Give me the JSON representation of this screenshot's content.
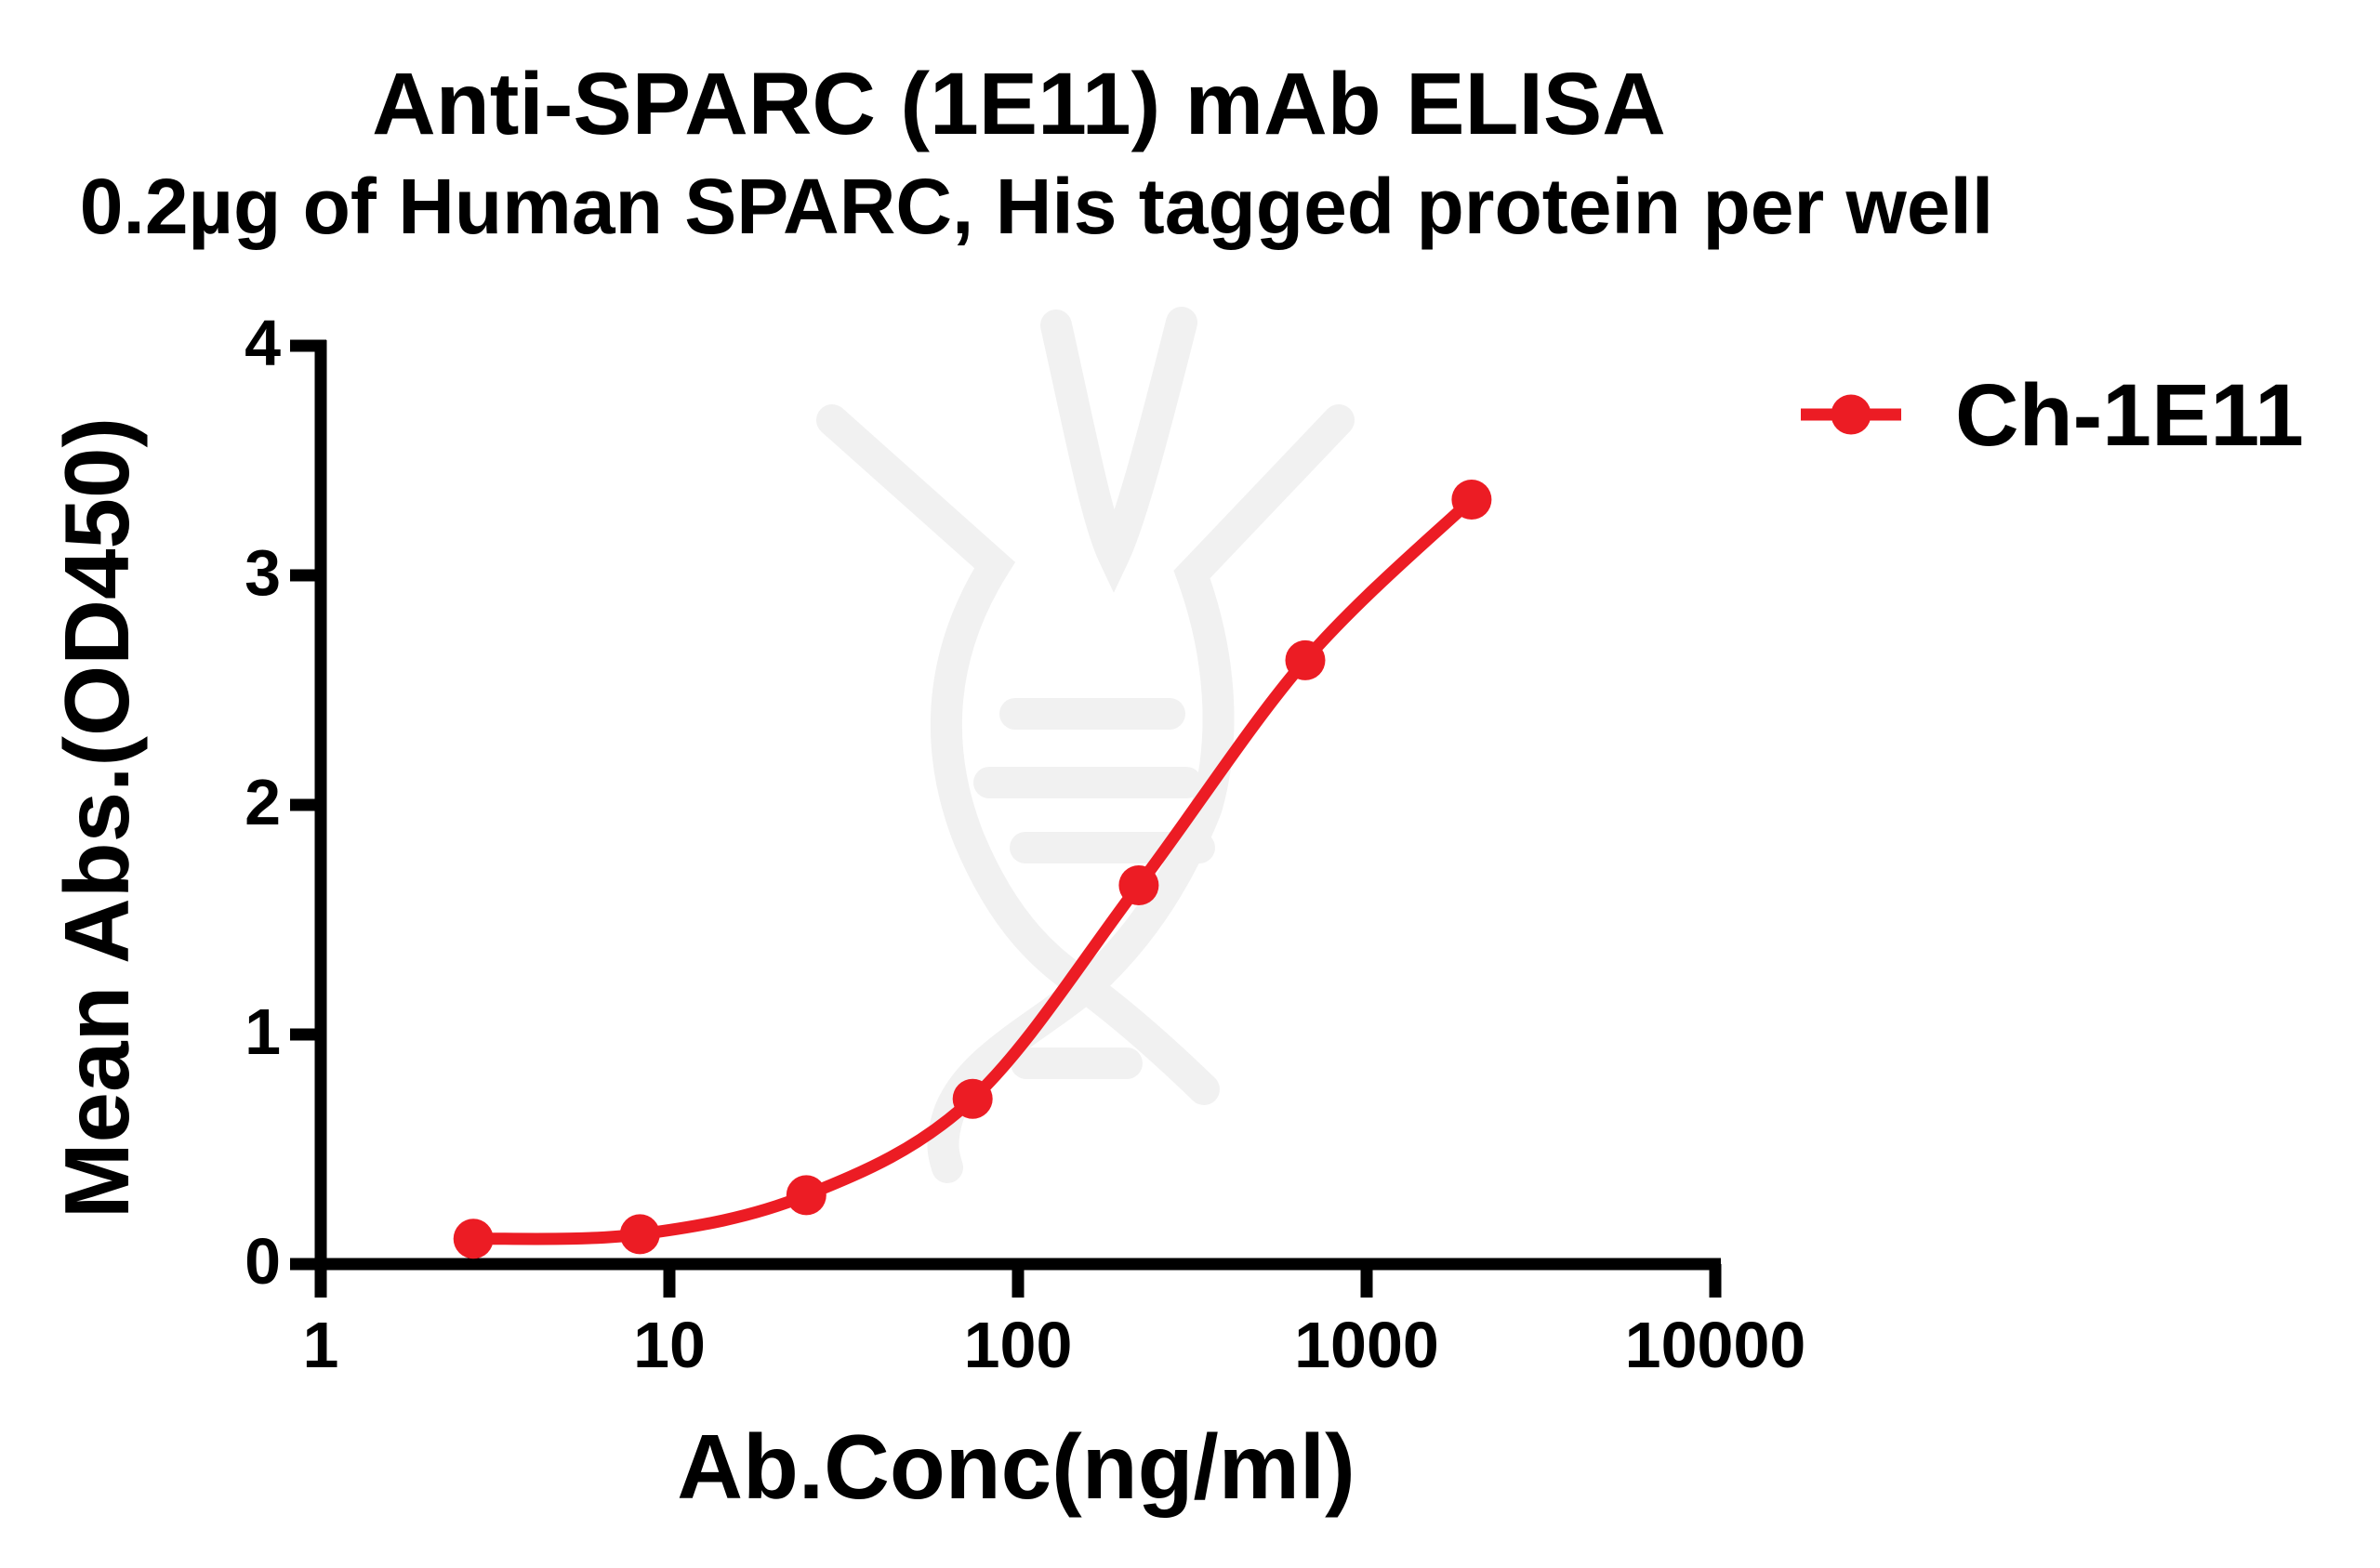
{
  "figure": {
    "title": "Anti-SPARC (1E11) mAb ELISA",
    "subtitle": "0.2µg of Human SPARC, His tagged protein per well"
  },
  "chart_data": {
    "type": "line",
    "title": "Anti-SPARC (1E11) mAb ELISA",
    "subtitle": "0.2µg of Human SPARC, His tagged protein per well",
    "xlabel": "Ab.Conc(ng/ml)",
    "ylabel": "Mean Abs.(OD450)",
    "x_scale": "log10",
    "xlim": [
      1,
      10000
    ],
    "ylim": [
      0,
      4
    ],
    "x_ticks": [
      1,
      10,
      100,
      1000,
      10000
    ],
    "x_tick_labels": [
      "1",
      "10",
      "100",
      "1000",
      "10000"
    ],
    "y_ticks": [
      0,
      1,
      2,
      3,
      4
    ],
    "y_tick_labels": [
      "0",
      "1",
      "2",
      "3",
      "4"
    ],
    "grid": false,
    "legend_position": "upper-right",
    "series": [
      {
        "name": "Ch-1E11",
        "color": "#EC1C24",
        "marker": "circle",
        "x": [
          2.74,
          8.23,
          24.7,
          74.1,
          222,
          667,
          2000
        ],
        "y": [
          0.11,
          0.13,
          0.3,
          0.72,
          1.65,
          2.63,
          3.33
        ]
      }
    ]
  },
  "colors": {
    "axis": "#000000",
    "text": "#000000",
    "watermark": "#F1F1F1",
    "background": "#FFFFFF"
  }
}
